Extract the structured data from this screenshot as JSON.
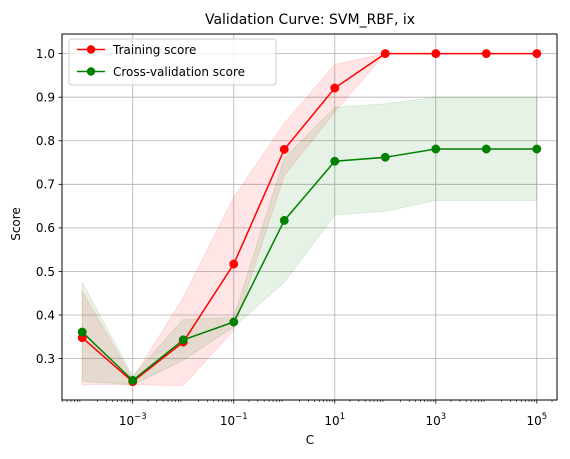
{
  "chart_data": {
    "type": "line",
    "title": "Validation Curve: SVM_RBF, ix",
    "xlabel": "C",
    "ylabel": "Score",
    "xscale": "log",
    "xlim": [
      3.98e-05,
      251000
    ],
    "ylim": [
      0.205,
      1.045
    ],
    "grid": true,
    "legend_position": "top-left",
    "x": [
      0.0001,
      0.001,
      0.01,
      0.1,
      1,
      10,
      100,
      1000,
      10000,
      100000
    ],
    "x_ticks": [
      {
        "value": 0.001,
        "base": "10",
        "exp": "−3"
      },
      {
        "value": 0.1,
        "base": "10",
        "exp": "−1"
      },
      {
        "value": 10,
        "base": "10",
        "exp": "1"
      },
      {
        "value": 1000,
        "base": "10",
        "exp": "3"
      },
      {
        "value": 100000,
        "base": "10",
        "exp": "5"
      }
    ],
    "y_ticks": [
      "0.3",
      "0.4",
      "0.5",
      "0.6",
      "0.7",
      "0.8",
      "0.9",
      "1.0"
    ],
    "series": [
      {
        "name": "Training score",
        "color": "#ff0000",
        "band_color": "#ff0000",
        "values": [
          0.348,
          0.247,
          0.338,
          0.517,
          0.78,
          0.921,
          1.0,
          1.0,
          1.0,
          1.0
        ],
        "band_upper": [
          0.455,
          0.254,
          0.44,
          0.67,
          0.84,
          0.975,
          1.0,
          1.0,
          1.0,
          1.0
        ],
        "band_lower": [
          0.24,
          0.24,
          0.238,
          0.365,
          0.72,
          0.866,
          1.0,
          1.0,
          1.0,
          1.0
        ]
      },
      {
        "name": "Cross-validation score",
        "color": "#008000",
        "band_color": "#008000",
        "values": [
          0.361,
          0.25,
          0.343,
          0.384,
          0.617,
          0.753,
          0.762,
          0.781,
          0.781,
          0.781
        ],
        "band_upper": [
          0.475,
          0.26,
          0.39,
          0.395,
          0.76,
          0.877,
          0.885,
          0.9,
          0.9,
          0.9
        ],
        "band_lower": [
          0.248,
          0.24,
          0.296,
          0.373,
          0.475,
          0.63,
          0.638,
          0.663,
          0.663,
          0.663
        ]
      }
    ]
  }
}
